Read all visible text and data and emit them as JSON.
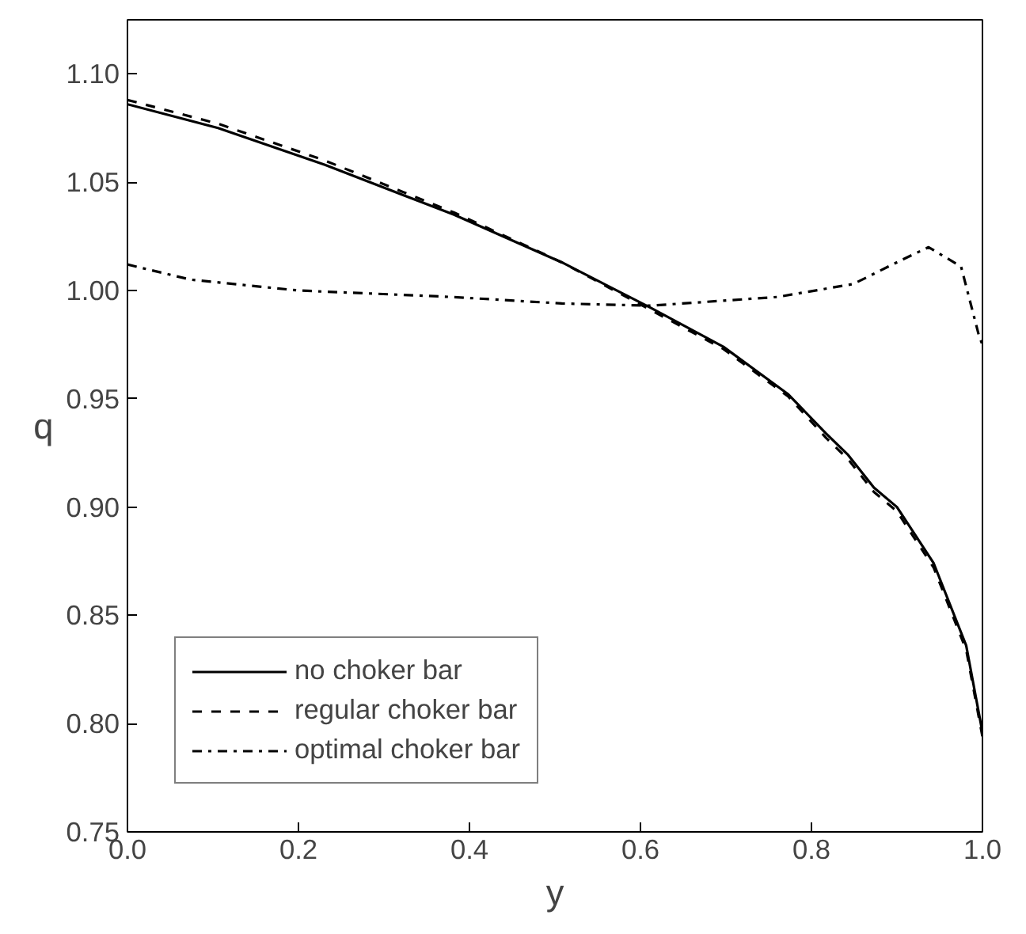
{
  "chart_data": {
    "type": "line",
    "xlabel": "y",
    "ylabel": "q",
    "xlim": [
      0,
      1
    ],
    "ylim": [
      0.75,
      1.125
    ],
    "xticks": [
      {
        "value": 0,
        "label": "0.0"
      },
      {
        "value": 0.2,
        "label": "0.2"
      },
      {
        "value": 0.4,
        "label": "0.4"
      },
      {
        "value": 0.6,
        "label": "0.6"
      },
      {
        "value": 0.8,
        "label": "0.8"
      },
      {
        "value": 1,
        "label": "1.0"
      }
    ],
    "yticks": [
      {
        "value": 0.75,
        "label": "0.75"
      },
      {
        "value": 0.8,
        "label": "0.80"
      },
      {
        "value": 0.85,
        "label": "0.85"
      },
      {
        "value": 0.9,
        "label": "0.90"
      },
      {
        "value": 0.95,
        "label": "0.95"
      },
      {
        "value": 1.0,
        "label": "1.00"
      },
      {
        "value": 1.05,
        "label": "1.05"
      },
      {
        "value": 1.1,
        "label": "1.10"
      }
    ],
    "grid": false,
    "legend": "bottom left",
    "marker": "none",
    "series": [
      {
        "name": "no choker bar",
        "color": "#000000",
        "line_style": "solid",
        "x": [
          0,
          0.106,
          0.231,
          0.382,
          0.508,
          0.612,
          0.697,
          0.773,
          0.817,
          0.843,
          0.873,
          0.9,
          0.943,
          0.981,
          1.0
        ],
        "values": [
          1.086,
          1.075,
          1.058,
          1.035,
          1.013,
          0.992,
          0.974,
          0.952,
          0.934,
          0.924,
          0.909,
          0.9,
          0.874,
          0.836,
          0.796
        ]
      },
      {
        "name": "regular choker bar",
        "color": "#000000",
        "line_style": "dashed",
        "x": [
          0,
          0.106,
          0.231,
          0.382,
          0.508,
          0.612,
          0.697,
          0.773,
          0.817,
          0.843,
          0.873,
          0.9,
          0.943,
          0.981,
          1.0
        ],
        "values": [
          1.088,
          1.077,
          1.06,
          1.036,
          1.013,
          0.991,
          0.973,
          0.951,
          0.932,
          0.922,
          0.907,
          0.898,
          0.872,
          0.834,
          0.794
        ]
      },
      {
        "name": "optimal choker bar",
        "color": "#000000",
        "line_style": "dashdot",
        "x": [
          0,
          0.074,
          0.2,
          0.38,
          0.508,
          0.612,
          0.76,
          0.849,
          0.905,
          0.937,
          0.975,
          0.996,
          1.0
        ],
        "values": [
          1.012,
          1.005,
          1.0,
          0.997,
          0.994,
          0.993,
          0.997,
          1.003,
          1.014,
          1.02,
          1.011,
          0.979,
          0.975
        ]
      }
    ]
  }
}
